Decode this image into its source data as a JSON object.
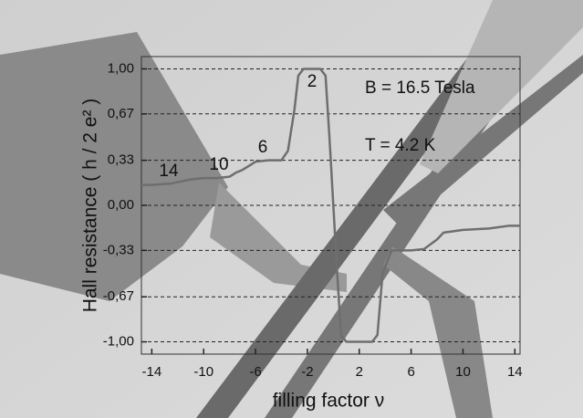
{
  "chart_data": {
    "type": "line",
    "x_label": "filling factor ν",
    "y_label": "Hall resistance  ( h / 2 e² )",
    "annotations": [
      "14",
      "10",
      "6",
      "2",
      "B = 16.5 Tesla",
      "T = 4.2 K"
    ],
    "x": [
      -14.8,
      -14,
      -12.5,
      -11,
      -10,
      -9,
      -8,
      -7.5,
      -7,
      -6.5,
      -6,
      -5,
      -4,
      -3.5,
      -3,
      -2.7,
      -2.3,
      -1,
      -0.6,
      -0.3,
      0,
      0.3,
      0.6,
      1,
      3,
      3.4,
      3.8,
      4.2,
      4.5,
      6,
      7,
      8,
      8.5,
      10,
      12,
      13.5,
      14.4
    ],
    "series": [
      {
        "color": "#6e6e6e",
        "values": [
          0.15,
          0.15,
          0.16,
          0.19,
          0.2,
          0.2,
          0.21,
          0.24,
          0.26,
          0.29,
          0.32,
          0.33,
          0.33,
          0.4,
          0.7,
          0.95,
          1.0,
          1.0,
          0.95,
          0.5,
          0,
          -0.5,
          -0.95,
          -1.0,
          -1.0,
          -0.95,
          -0.5,
          -0.4,
          -0.33,
          -0.33,
          -0.32,
          -0.25,
          -0.2,
          -0.18,
          -0.17,
          -0.15,
          -0.15
        ]
      }
    ],
    "xlim": [
      -14.8,
      14.4
    ],
    "ylim": [
      -1.09,
      1.09
    ],
    "xticks": [
      -14,
      -10,
      -6,
      -2,
      2,
      6,
      10,
      14
    ],
    "yticks": [
      {
        "value": -1.0,
        "label": "-1,00"
      },
      {
        "value": -0.67,
        "label": "-0,67"
      },
      {
        "value": -0.33,
        "label": "-0,33"
      },
      {
        "value": 0,
        "label": "0,00"
      },
      {
        "value": 0.33,
        "label": "0,33"
      },
      {
        "value": 0.67,
        "label": "0,67"
      },
      {
        "value": 1.0,
        "label": "1,00"
      }
    ],
    "grid": true
  }
}
